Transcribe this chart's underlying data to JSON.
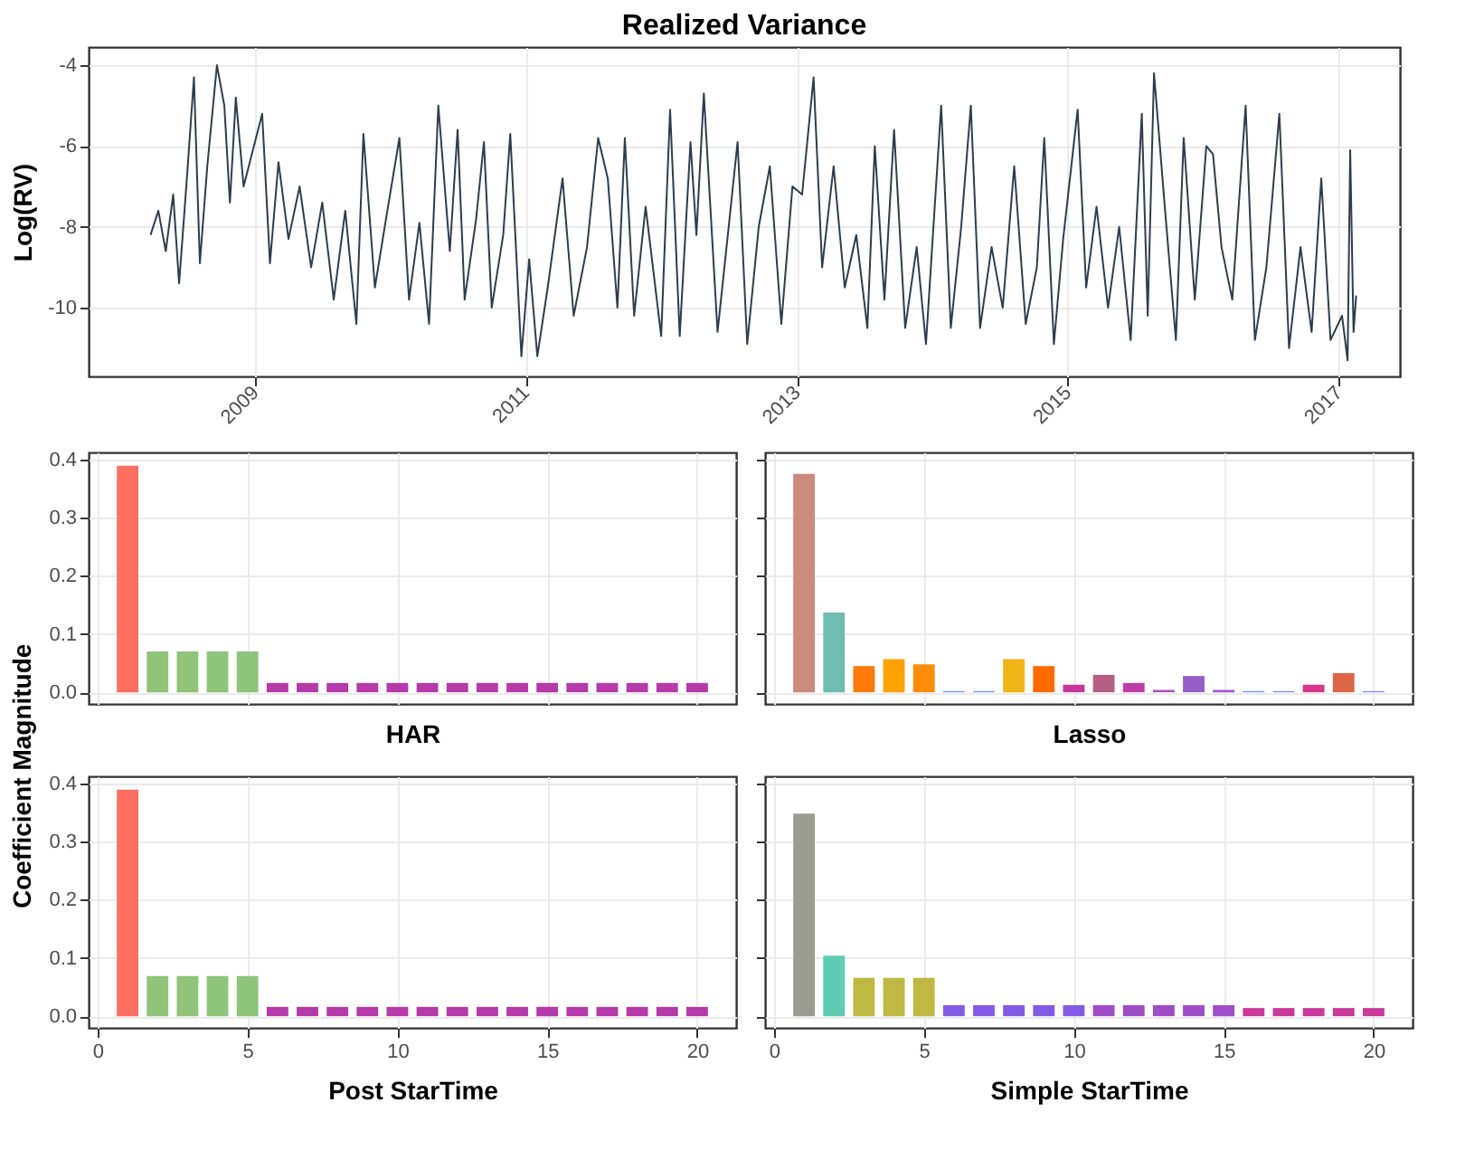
{
  "chart_data": [
    {
      "type": "line",
      "title": "Realized Variance",
      "ylabel": "Log(RV)",
      "color": "#2c3e50",
      "grid": true,
      "x": [
        "2008-03-25",
        "2008-04-15",
        "2008-05-05",
        "2008-05-25",
        "2008-06-10",
        "2008-07-01",
        "2008-07-20",
        "2008-08-05",
        "2008-08-25",
        "2008-09-20",
        "2008-10-10",
        "2008-10-25",
        "2008-11-10",
        "2008-12-01",
        "2009-01-20",
        "2009-02-10",
        "2009-03-05",
        "2009-04-01",
        "2009-05-01",
        "2009-06-01",
        "2009-07-01",
        "2009-08-01",
        "2009-09-01",
        "2009-10-01",
        "2009-10-20",
        "2009-11-20",
        "2009-12-20",
        "2010-01-25",
        "2010-02-20",
        "2010-03-20",
        "2010-04-15",
        "2010-05-10",
        "2010-06-10",
        "2010-07-01",
        "2010-07-20",
        "2010-08-20",
        "2010-09-10",
        "2010-10-01",
        "2010-11-01",
        "2010-11-20",
        "2010-12-20",
        "2011-01-10",
        "2011-02-01",
        "2011-03-01",
        "2011-04-10",
        "2011-05-10",
        "2011-06-15",
        "2011-07-15",
        "2011-08-10",
        "2011-09-05",
        "2011-09-25",
        "2011-10-20",
        "2011-11-20",
        "2012-01-01",
        "2012-01-25",
        "2012-02-20",
        "2012-03-20",
        "2012-04-05",
        "2012-04-25",
        "2012-06-01",
        "2012-07-01",
        "2012-07-25",
        "2012-08-20",
        "2012-09-20",
        "2012-10-20",
        "2012-11-20",
        "2012-12-20",
        "2013-01-15",
        "2013-02-15",
        "2013-03-10",
        "2013-04-10",
        "2013-05-10",
        "2013-06-10",
        "2013-07-10",
        "2013-07-30",
        "2013-08-25",
        "2013-09-20",
        "2013-10-20",
        "2013-11-20",
        "2013-12-15",
        "2014-01-25",
        "2014-02-20",
        "2014-03-20",
        "2014-04-15",
        "2014-05-10",
        "2014-06-10",
        "2014-07-10",
        "2014-08-10",
        "2014-09-10",
        "2014-10-10",
        "2014-10-30",
        "2014-11-25",
        "2014-12-20",
        "2015-01-28",
        "2015-02-20",
        "2015-03-20",
        "2015-04-20",
        "2015-05-20",
        "2015-06-20",
        "2015-07-20",
        "2015-08-05",
        "2015-08-22",
        "2015-09-20",
        "2015-10-20",
        "2015-11-10",
        "2015-12-10",
        "2016-01-10",
        "2016-01-28",
        "2016-02-20",
        "2016-03-20",
        "2016-04-25",
        "2016-05-20",
        "2016-06-20",
        "2016-07-25",
        "2016-08-20",
        "2016-09-20",
        "2016-10-20",
        "2016-11-15",
        "2016-12-10",
        "2017-01-10",
        "2017-01-25",
        "2017-02-01",
        "2017-02-10",
        "2017-02-17"
      ],
      "values": [
        -8.2,
        -7.6,
        -8.6,
        -7.2,
        -9.4,
        -6.8,
        -4.3,
        -8.9,
        -6.5,
        -4.0,
        -5.0,
        -7.4,
        -4.8,
        -7.0,
        -5.2,
        -8.9,
        -6.4,
        -8.3,
        -7.0,
        -9.0,
        -7.4,
        -9.8,
        -7.6,
        -10.4,
        -5.7,
        -9.5,
        -7.8,
        -5.8,
        -9.8,
        -7.9,
        -10.4,
        -5.0,
        -8.6,
        -5.6,
        -9.8,
        -7.8,
        -5.9,
        -10.0,
        -8.2,
        -5.7,
        -11.2,
        -8.8,
        -11.2,
        -9.5,
        -6.8,
        -10.2,
        -8.5,
        -5.8,
        -6.8,
        -10.0,
        -5.8,
        -10.2,
        -7.5,
        -10.7,
        -5.1,
        -10.7,
        -5.9,
        -8.2,
        -4.7,
        -10.6,
        -8.0,
        -5.9,
        -10.9,
        -8.0,
        -6.5,
        -10.4,
        -7.0,
        -7.2,
        -4.3,
        -9.0,
        -6.5,
        -9.5,
        -8.2,
        -10.5,
        -6.0,
        -9.8,
        -5.6,
        -10.5,
        -8.5,
        -10.9,
        -5.0,
        -10.5,
        -8.0,
        -5.0,
        -10.5,
        -8.5,
        -10.0,
        -6.5,
        -10.4,
        -9.0,
        -5.8,
        -10.9,
        -8.3,
        -5.1,
        -9.5,
        -7.5,
        -10.0,
        -8.0,
        -10.8,
        -5.2,
        -10.2,
        -4.2,
        -7.5,
        -10.8,
        -5.8,
        -9.8,
        -6.0,
        -6.2,
        -8.5,
        -9.8,
        -5.0,
        -10.8,
        -9.0,
        -5.2,
        -11.0,
        -8.5,
        -10.6,
        -6.8,
        -10.8,
        -10.2,
        -11.3,
        -6.1,
        -10.6,
        -9.7
      ],
      "xlim": [
        "2007-10-10",
        "2017-06-15"
      ],
      "xticks": [
        {
          "value": "2009-01-01",
          "label": "2009"
        },
        {
          "value": "2011-01-01",
          "label": "2011"
        },
        {
          "value": "2013-01-01",
          "label": "2013"
        },
        {
          "value": "2015-01-01",
          "label": "2015"
        },
        {
          "value": "2017-01-01",
          "label": "2017"
        }
      ],
      "ylim": [
        -11.7,
        -3.55
      ],
      "yticks": [
        -10,
        -8,
        -6,
        -4
      ]
    },
    {
      "type": "bar",
      "xlabel": "HAR",
      "ylabel": "Coefficient Magnitude",
      "tick_labels": "y",
      "grid": true,
      "x": [
        1,
        2,
        3,
        4,
        5,
        6,
        7,
        8,
        9,
        10,
        11,
        12,
        13,
        14,
        15,
        16,
        17,
        18,
        19,
        20
      ],
      "values": [
        0.389,
        0.07,
        0.07,
        0.07,
        0.07,
        0.016,
        0.016,
        0.016,
        0.016,
        0.016,
        0.016,
        0.016,
        0.016,
        0.016,
        0.016,
        0.016,
        0.016,
        0.016,
        0.016,
        0.016
      ],
      "colors": [
        "#ff6f61",
        "#8fc47a",
        "#8fc47a",
        "#8fc47a",
        "#8fc47a",
        "#b63aaa",
        "#b63aaa",
        "#b63aaa",
        "#b63aaa",
        "#b63aaa",
        "#b63aaa",
        "#b63aaa",
        "#b63aaa",
        "#b63aaa",
        "#b63aaa",
        "#b63aaa",
        "#b63aaa",
        "#b63aaa",
        "#b63aaa",
        "#b63aaa"
      ],
      "xlim": [
        -0.3,
        21.3
      ],
      "xticks": [
        {
          "value": 0,
          "label": null
        },
        {
          "value": 5,
          "label": null
        },
        {
          "value": 10,
          "label": null
        },
        {
          "value": 15,
          "label": null
        },
        {
          "value": 20,
          "label": null
        }
      ],
      "ylim": [
        -0.02,
        0.412
      ],
      "yticks": [
        {
          "value": 0,
          "label": "0.0"
        },
        0.1,
        0.2,
        0.3,
        0.4
      ]
    },
    {
      "type": "bar",
      "xlabel": "Lasso",
      "tick_labels": false,
      "grid": true,
      "x": [
        1,
        2,
        3,
        4,
        5,
        6,
        7,
        8,
        9,
        10,
        11,
        12,
        13,
        14,
        15,
        16,
        17,
        18,
        19,
        20
      ],
      "values": [
        0.375,
        0.137,
        0.045,
        0.057,
        0.048,
        0.002,
        0.002,
        0.057,
        0.045,
        0.013,
        0.03,
        0.016,
        0.004,
        0.028,
        0.004,
        0.002,
        0.002,
        0.013,
        0.033,
        0.002
      ],
      "colors": [
        "#cd8a7e",
        "#6fbdb1",
        "#fe7a0a",
        "#ffa305",
        "#fd8c08",
        "#6b8cff",
        "#6b8cff",
        "#efb416",
        "#ff6a00",
        "#c5379b",
        "#b45f83",
        "#c03ca8",
        "#b04cbe",
        "#9460c8",
        "#9e5bd5",
        "#6b8cff",
        "#6b8cff",
        "#d7368c",
        "#dc6646",
        "#6b8cff"
      ],
      "xlim": [
        -0.3,
        21.3
      ],
      "xticks": [
        {
          "value": 0,
          "label": null
        },
        {
          "value": 5,
          "label": null
        },
        {
          "value": 10,
          "label": null
        },
        {
          "value": 15,
          "label": null
        },
        {
          "value": 20,
          "label": null
        }
      ],
      "ylim": [
        -0.02,
        0.412
      ],
      "yticks": [
        {
          "value": 0,
          "label": null
        },
        {
          "value": 0.1,
          "label": null
        },
        {
          "value": 0.2,
          "label": null
        },
        {
          "value": 0.3,
          "label": null
        },
        {
          "value": 0.4,
          "label": null
        }
      ]
    },
    {
      "type": "bar",
      "xlabel": "Post StarTime",
      "grid": true,
      "x": [
        1,
        2,
        3,
        4,
        5,
        6,
        7,
        8,
        9,
        10,
        11,
        12,
        13,
        14,
        15,
        16,
        17,
        18,
        19,
        20
      ],
      "values": [
        0.389,
        0.069,
        0.069,
        0.069,
        0.069,
        0.016,
        0.016,
        0.016,
        0.016,
        0.016,
        0.016,
        0.016,
        0.016,
        0.016,
        0.016,
        0.016,
        0.016,
        0.016,
        0.016,
        0.016
      ],
      "colors": [
        "#ff6f61",
        "#8fc47a",
        "#8fc47a",
        "#8fc47a",
        "#8fc47a",
        "#b63aaa",
        "#b63aaa",
        "#b63aaa",
        "#b63aaa",
        "#b63aaa",
        "#b63aaa",
        "#b63aaa",
        "#b63aaa",
        "#b63aaa",
        "#b63aaa",
        "#b63aaa",
        "#b63aaa",
        "#b63aaa",
        "#b63aaa",
        "#b63aaa"
      ],
      "xlim": [
        -0.3,
        21.3
      ],
      "xticks": [
        0,
        5,
        10,
        15,
        20
      ],
      "ylim": [
        -0.02,
        0.412
      ],
      "yticks": [
        {
          "value": 0,
          "label": "0.0"
        },
        0.1,
        0.2,
        0.3,
        0.4
      ]
    },
    {
      "type": "bar",
      "xlabel": "Simple StarTime",
      "tick_labels": "x",
      "grid": true,
      "x": [
        1,
        2,
        3,
        4,
        5,
        6,
        7,
        8,
        9,
        10,
        11,
        12,
        13,
        14,
        15,
        16,
        17,
        18,
        19,
        20
      ],
      "values": [
        0.348,
        0.104,
        0.066,
        0.066,
        0.066,
        0.019,
        0.019,
        0.019,
        0.019,
        0.019,
        0.019,
        0.019,
        0.019,
        0.019,
        0.019,
        0.014,
        0.014,
        0.014,
        0.014,
        0.014
      ],
      "colors": [
        "#9c9d92",
        "#5fcdb4",
        "#bfb944",
        "#bfb944",
        "#bfb944",
        "#835ae6",
        "#835ae6",
        "#835ae6",
        "#835ae6",
        "#835ae6",
        "#9e4dc7",
        "#9e4dc7",
        "#9e4dc7",
        "#9e4dc7",
        "#9e4dc7",
        "#c8399a",
        "#c8399a",
        "#c8399a",
        "#c8399a",
        "#c8399a"
      ],
      "xlim": [
        -0.3,
        21.3
      ],
      "xticks": [
        0,
        5,
        10,
        15,
        20
      ],
      "ylim": [
        -0.02,
        0.412
      ],
      "yticks": [
        {
          "value": 0,
          "label": null
        },
        {
          "value": 0.1,
          "label": null
        },
        {
          "value": 0.2,
          "label": null
        },
        {
          "value": 0.3,
          "label": null
        },
        {
          "value": 0.4,
          "label": null
        }
      ]
    }
  ]
}
